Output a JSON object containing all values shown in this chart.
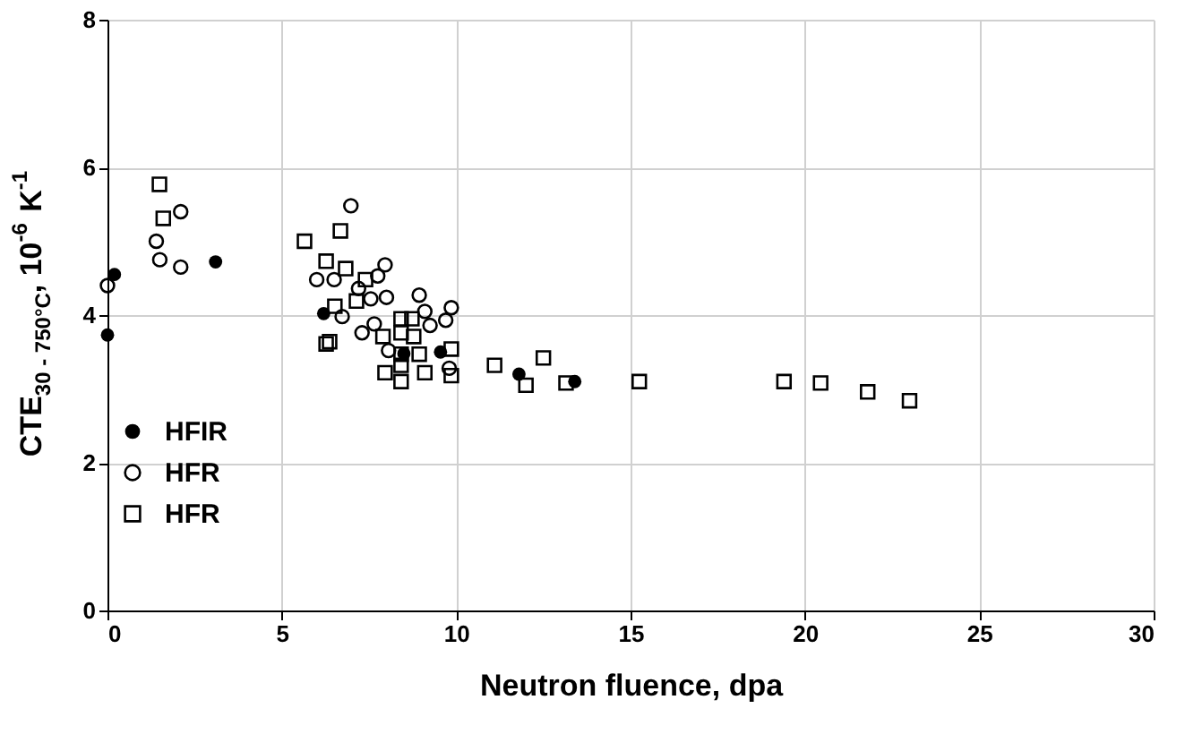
{
  "chart_data": {
    "type": "scatter",
    "xlabel": "Neutron fluence, dpa",
    "ylabel": "CTE$_{30 - 750°C}$, 10$^{-6}$ K$^{-1}$",
    "xlim": [
      0,
      30
    ],
    "xticks": [
      0,
      5,
      10,
      15,
      20,
      25,
      30
    ],
    "ylim": [
      0,
      8
    ],
    "yticks": [
      0,
      2,
      4,
      6,
      8
    ],
    "grid": true,
    "legend": "bottom left",
    "series": [
      {
        "name": "HFIR",
        "color": "#000000",
        "marker": "circle",
        "x": [
          0,
          0.2,
          3.1,
          6.2,
          8.5,
          9.55,
          11.8,
          13.4
        ],
        "values": [
          3.73,
          4.55,
          4.72,
          4.02,
          3.48,
          3.5,
          3.2,
          3.1
        ]
      },
      {
        "name": "HFR",
        "color": "#000000",
        "marker": "circle",
        "x": [
          0,
          1.4,
          1.5,
          2.1,
          2.1,
          6.98,
          6.0,
          6.5,
          7.96,
          7.75,
          7.2,
          7.55,
          8.0,
          8.94,
          9.86,
          6.73,
          7.3,
          7.65,
          9.1,
          9.7,
          9.25,
          8.06,
          9.8
        ],
        "values": [
          4.4,
          5.0,
          4.75,
          5.4,
          4.65,
          5.48,
          4.48,
          4.48,
          4.68,
          4.53,
          4.36,
          4.22,
          4.24,
          4.27,
          4.1,
          3.98,
          3.76,
          3.88,
          4.05,
          3.93,
          3.86,
          3.52,
          3.28
        ]
      },
      {
        "name": "HFR",
        "color": "#000000",
        "marker": "square",
        "x": [
          1.49,
          1.6,
          5.65,
          6.27,
          6.27,
          6.68,
          6.83,
          7.4,
          6.52,
          7.14,
          6.37,
          8.42,
          8.73,
          8.42,
          8.78,
          7.9,
          8.42,
          8.94,
          7.96,
          8.42,
          9.1,
          9.86,
          9.86,
          8.42,
          11.1,
          12.5,
          12.0,
          13.15,
          15.25,
          19.4,
          20.45,
          21.8,
          23.0
        ],
        "values": [
          5.77,
          5.31,
          5.0,
          4.73,
          3.61,
          5.14,
          4.63,
          4.48,
          4.12,
          4.19,
          3.64,
          3.95,
          3.95,
          3.76,
          3.71,
          3.71,
          3.47,
          3.47,
          3.22,
          3.32,
          3.22,
          3.54,
          3.18,
          3.1,
          3.32,
          3.42,
          3.05,
          3.08,
          3.1,
          3.1,
          3.08,
          2.96,
          2.84
        ]
      }
    ]
  }
}
